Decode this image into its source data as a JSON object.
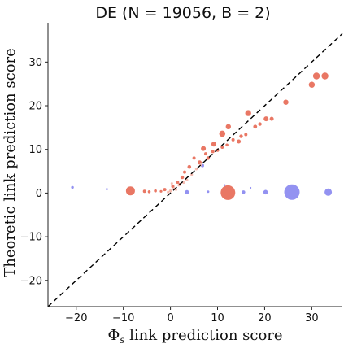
{
  "chart_data": {
    "type": "scatter",
    "title": "DE (N = 19056, B = 2)",
    "xlabel": "Φ_s link prediction score",
    "ylabel": "Theoretic link prediction score",
    "xlim": [
      -26,
      36.5
    ],
    "ylim": [
      -26,
      39
    ],
    "x_ticks": [
      -20,
      -10,
      0,
      10,
      20,
      30
    ],
    "y_ticks": [
      -20,
      -10,
      0,
      10,
      20,
      30
    ],
    "grid": false,
    "reference_line": {
      "label": "",
      "style": "dashed",
      "color": "#000000",
      "from": [
        -26,
        -26
      ],
      "to": [
        36.5,
        36.5
      ]
    },
    "colors": {
      "red": "#e8705c",
      "light_red": "#f5b9ae",
      "blue": "#8d8cf0"
    },
    "series": [
      {
        "color": "#e8705c",
        "points": [
          {
            "x": 32.8,
            "y": 26.8,
            "s": 4.2
          },
          {
            "x": 31.0,
            "y": 26.8,
            "s": 4.2
          },
          {
            "x": 30.0,
            "y": 24.8,
            "s": 3.7
          },
          {
            "x": 24.5,
            "y": 20.8,
            "s": 3.2
          },
          {
            "x": 20.3,
            "y": 17.0,
            "s": 3.0
          },
          {
            "x": 21.5,
            "y": 17.0,
            "s": 2.5
          },
          {
            "x": 16.5,
            "y": 18.3,
            "s": 3.7
          },
          {
            "x": 12.3,
            "y": 15.2,
            "s": 3.2
          },
          {
            "x": 11.0,
            "y": 13.6,
            "s": 3.8
          },
          {
            "x": 9.2,
            "y": 11.2,
            "s": 3.0
          },
          {
            "x": 7.0,
            "y": 10.2,
            "s": 3.0
          },
          {
            "x": 18.0,
            "y": 15.2,
            "s": 2.4
          },
          {
            "x": 19.0,
            "y": 15.8,
            "s": 2.2
          },
          {
            "x": 15.0,
            "y": 13.0,
            "s": 2.2
          },
          {
            "x": 14.5,
            "y": 11.8,
            "s": 2.5
          },
          {
            "x": 13.3,
            "y": 12.2,
            "s": 2.0
          },
          {
            "x": 16.0,
            "y": 13.4,
            "s": 2.0
          },
          {
            "x": 6.2,
            "y": 7.0,
            "s": 2.5
          },
          {
            "x": 5.0,
            "y": 8.0,
            "s": 2.0
          },
          {
            "x": 4.0,
            "y": 6.0,
            "s": 2.3
          },
          {
            "x": 3.0,
            "y": 4.8,
            "s": 2.0
          },
          {
            "x": 2.5,
            "y": 3.6,
            "s": 2.2
          },
          {
            "x": 1.5,
            "y": 2.5,
            "s": 2.0
          },
          {
            "x": 0.5,
            "y": 1.5,
            "s": 2.0
          },
          {
            "x": -1.2,
            "y": 0.8,
            "s": 2.0
          },
          {
            "x": 2.0,
            "y": 2.0,
            "s": 1.8
          },
          {
            "x": 8.0,
            "y": 8.0,
            "s": 2.2
          },
          {
            "x": 9.0,
            "y": 9.5,
            "s": 2.0
          },
          {
            "x": 10.0,
            "y": 9.8,
            "s": 2.0
          },
          {
            "x": 11.0,
            "y": 10.5,
            "s": 2.0
          },
          {
            "x": 7.5,
            "y": 9.0,
            "s": 2.0
          },
          {
            "x": 12.0,
            "y": 11.0,
            "s": 1.8
          },
          {
            "x": -8.5,
            "y": 0.5,
            "s": 5.5
          },
          {
            "x": 12.2,
            "y": 0.1,
            "s": 9.0
          },
          {
            "x": -5.5,
            "y": 0.4,
            "s": 2.0
          },
          {
            "x": -4.5,
            "y": 0.3,
            "s": 1.8
          },
          {
            "x": -3.2,
            "y": 0.5,
            "s": 1.8
          },
          {
            "x": -2.0,
            "y": 0.4,
            "s": 1.6
          }
        ]
      },
      {
        "color": "#f5b9ae",
        "points": [
          {
            "x": 0.0,
            "y": 0.5,
            "s": 1.8
          },
          {
            "x": 0.8,
            "y": 1.0,
            "s": 1.8
          },
          {
            "x": 1.2,
            "y": 0.8,
            "s": 1.6
          },
          {
            "x": 1.8,
            "y": 1.8,
            "s": 1.6
          },
          {
            "x": 2.8,
            "y": 2.4,
            "s": 1.6
          },
          {
            "x": 3.5,
            "y": 3.0,
            "s": 1.6
          },
          {
            "x": 4.5,
            "y": 4.2,
            "s": 1.6
          },
          {
            "x": 5.5,
            "y": 5.5,
            "s": 1.6
          },
          {
            "x": 6.5,
            "y": 6.5,
            "s": 1.6
          },
          {
            "x": -0.5,
            "y": 0.2,
            "s": 1.6
          },
          {
            "x": 0.3,
            "y": 2.2,
            "s": 1.5
          }
        ]
      },
      {
        "color": "#8d8cf0",
        "points": [
          {
            "x": 25.8,
            "y": 0.2,
            "s": 9.5
          },
          {
            "x": 33.5,
            "y": 0.2,
            "s": 4.5
          },
          {
            "x": 20.2,
            "y": 0.2,
            "s": 2.8
          },
          {
            "x": 15.5,
            "y": 0.2,
            "s": 2.2
          },
          {
            "x": 3.5,
            "y": 0.2,
            "s": 2.6
          },
          {
            "x": -20.8,
            "y": 1.3,
            "s": 1.7
          },
          {
            "x": -13.5,
            "y": 0.9,
            "s": 1.3
          },
          {
            "x": 6.8,
            "y": 6.3,
            "s": 2.0
          },
          {
            "x": 11.5,
            "y": 1.8,
            "s": 1.2
          },
          {
            "x": 17.0,
            "y": 1.2,
            "s": 1.1
          },
          {
            "x": 8.0,
            "y": 0.3,
            "s": 1.5
          }
        ]
      }
    ]
  }
}
